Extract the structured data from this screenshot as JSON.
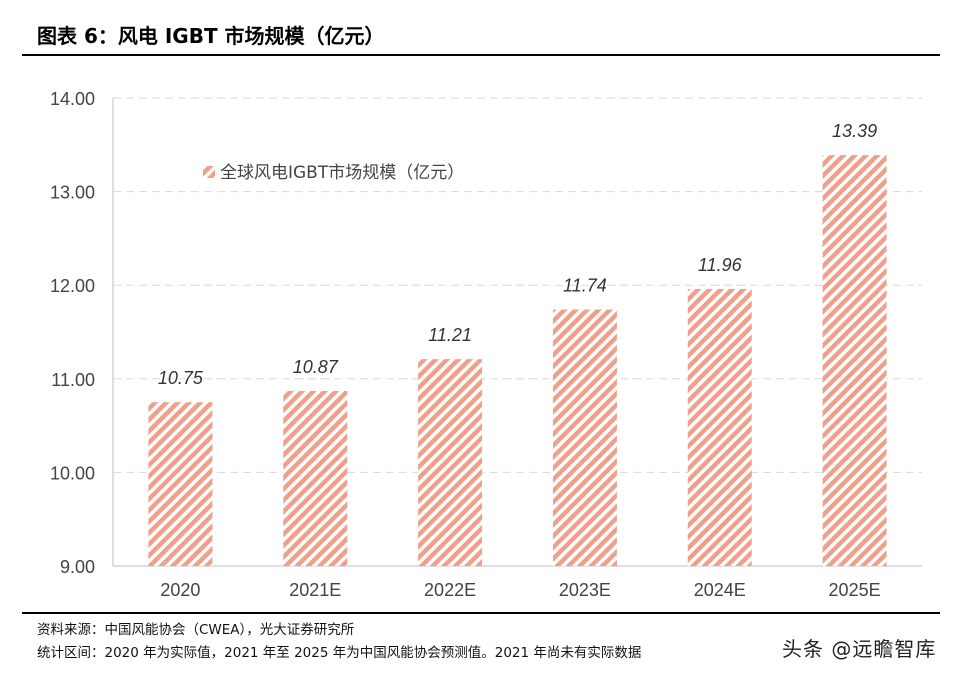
{
  "title": "图表 6：风电 IGBT 市场规模（亿元）",
  "source": "资料来源：中国风能协会（CWEA），光大证券研究所",
  "note": "统计区间：2020 年为实际值，2021 年至 2025 年为中国风能协会预测值。2021 年尚未有实际数据",
  "watermark": "头条 @远瞻智库",
  "chart_data": {
    "type": "bar",
    "categories": [
      "2020",
      "2021E",
      "2022E",
      "2023E",
      "2024E",
      "2025E"
    ],
    "series": [
      {
        "name": "全球风电IGBT市场规模（亿元）",
        "values": [
          10.75,
          10.87,
          11.21,
          11.74,
          11.96,
          13.39
        ]
      }
    ],
    "ylim": [
      9,
      14
    ],
    "yticks": [
      "9.00",
      "10.00",
      "11.00",
      "12.00",
      "13.00",
      "14.00"
    ],
    "data_labels": [
      "10.75",
      "10.87",
      "11.21",
      "11.74",
      "11.96",
      "13.39"
    ],
    "grid": true,
    "legend": "top-left",
    "bar_color": "#f0a08a",
    "bar_fill": "diagonal-hatch"
  }
}
